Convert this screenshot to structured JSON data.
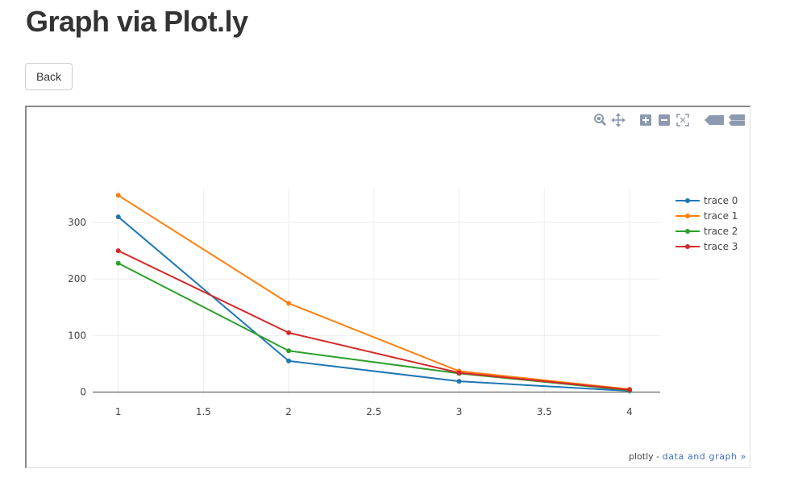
{
  "page": {
    "title": "Graph via Plot.ly",
    "back_label": "Back"
  },
  "modebar": {
    "icons": [
      "zoom-icon",
      "pan-icon",
      "zoom-in-icon",
      "zoom-out-icon",
      "autoscale-icon",
      "hover-closest-icon",
      "hover-compare-icon"
    ]
  },
  "credit": {
    "prefix": "plotly - ",
    "link": "data and graph »"
  },
  "chart_data": {
    "type": "line",
    "x": [
      1,
      2,
      3,
      4
    ],
    "xlim": [
      0.85,
      4.18
    ],
    "ylim": [
      -5,
      360
    ],
    "xticks": [
      "1",
      "1.5",
      "2",
      "2.5",
      "3",
      "3.5",
      "4"
    ],
    "yticks": [
      "0",
      "100",
      "200",
      "300"
    ],
    "grid": true,
    "legend_position": "top-right",
    "series": [
      {
        "name": "trace 0",
        "color": "#1f77b4",
        "values": [
          310,
          55,
          19,
          2
        ]
      },
      {
        "name": "trace 1",
        "color": "#ff7f0e",
        "values": [
          348,
          157,
          37,
          5
        ]
      },
      {
        "name": "trace 2",
        "color": "#2ca02c",
        "values": [
          228,
          73,
          33,
          3
        ]
      },
      {
        "name": "trace 3",
        "color": "#d62728",
        "values": [
          250,
          105,
          34,
          4
        ]
      }
    ]
  }
}
